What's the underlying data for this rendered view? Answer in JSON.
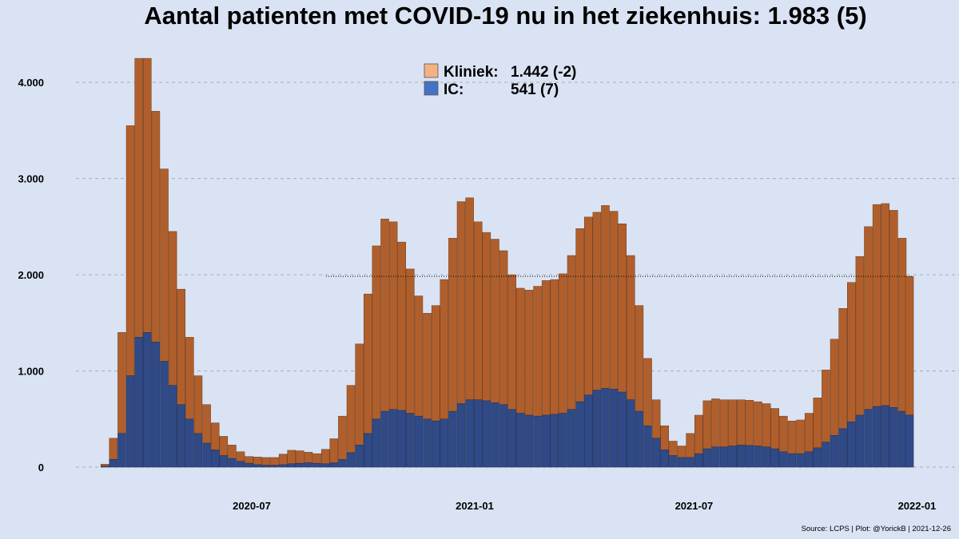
{
  "chart_data": {
    "type": "bar",
    "title": "Aantal patienten met COVID-19 nu in het ziekenhuis: 1.983  (5)",
    "xlabel": "",
    "ylabel": "",
    "ylim": [
      0,
      4400
    ],
    "y_ticks": [
      0,
      1000,
      2000,
      3000,
      4000
    ],
    "y_tick_labels": [
      "0",
      "1.000",
      "2.000",
      "3.000",
      "4.000"
    ],
    "x_tick_labels": [
      "2020-07",
      "2021-01",
      "2021-07",
      "2022-01"
    ],
    "x_ticks": [
      "2020-07-01",
      "2021-01-01",
      "2021-07-01",
      "2022-01-01"
    ],
    "stacked": true,
    "grid": "horizontal dashed",
    "reference_line": 1983,
    "legend_position": "top-center",
    "legend": [
      {
        "label": "Kliniek:",
        "value": "1.442  (-2)",
        "color": "#f4b183"
      },
      {
        "label": "IC:",
        "value": "541  (7)",
        "color": "#4472c4"
      }
    ],
    "x": [
      "2020-03-02",
      "2020-03-09",
      "2020-03-16",
      "2020-03-23",
      "2020-03-30",
      "2020-04-06",
      "2020-04-13",
      "2020-04-20",
      "2020-04-27",
      "2020-05-04",
      "2020-05-11",
      "2020-05-18",
      "2020-05-25",
      "2020-06-01",
      "2020-06-08",
      "2020-06-15",
      "2020-06-22",
      "2020-06-29",
      "2020-07-06",
      "2020-07-13",
      "2020-07-20",
      "2020-07-27",
      "2020-08-03",
      "2020-08-10",
      "2020-08-17",
      "2020-08-24",
      "2020-08-31",
      "2020-09-07",
      "2020-09-14",
      "2020-09-21",
      "2020-09-28",
      "2020-10-05",
      "2020-10-12",
      "2020-10-19",
      "2020-10-26",
      "2020-11-02",
      "2020-11-09",
      "2020-11-16",
      "2020-11-23",
      "2020-11-30",
      "2020-12-07",
      "2020-12-14",
      "2020-12-21",
      "2020-12-28",
      "2021-01-04",
      "2021-01-11",
      "2021-01-18",
      "2021-01-25",
      "2021-02-01",
      "2021-02-08",
      "2021-02-15",
      "2021-02-22",
      "2021-03-01",
      "2021-03-08",
      "2021-03-15",
      "2021-03-22",
      "2021-03-29",
      "2021-04-05",
      "2021-04-12",
      "2021-04-19",
      "2021-04-26",
      "2021-05-03",
      "2021-05-10",
      "2021-05-17",
      "2021-05-24",
      "2021-05-31",
      "2021-06-07",
      "2021-06-14",
      "2021-06-21",
      "2021-06-28",
      "2021-07-05",
      "2021-07-12",
      "2021-07-19",
      "2021-07-26",
      "2021-08-02",
      "2021-08-09",
      "2021-08-16",
      "2021-08-23",
      "2021-08-30",
      "2021-09-06",
      "2021-09-13",
      "2021-09-20",
      "2021-09-27",
      "2021-10-04",
      "2021-10-11",
      "2021-10-18",
      "2021-10-25",
      "2021-11-01",
      "2021-11-08",
      "2021-11-15",
      "2021-11-22",
      "2021-11-29",
      "2021-12-06",
      "2021-12-13",
      "2021-12-20",
      "2021-12-26"
    ],
    "series": [
      {
        "name": "IC",
        "color": "#4472c4",
        "values": [
          10,
          80,
          350,
          950,
          1350,
          1400,
          1300,
          1100,
          850,
          650,
          500,
          350,
          250,
          180,
          120,
          90,
          60,
          40,
          25,
          20,
          20,
          25,
          35,
          40,
          45,
          40,
          35,
          45,
          80,
          150,
          230,
          350,
          500,
          580,
          600,
          590,
          560,
          530,
          500,
          480,
          500,
          580,
          660,
          700,
          700,
          690,
          670,
          650,
          600,
          560,
          540,
          530,
          540,
          550,
          560,
          600,
          680,
          750,
          800,
          820,
          810,
          780,
          700,
          580,
          430,
          300,
          180,
          120,
          100,
          100,
          140,
          190,
          210,
          210,
          220,
          230,
          225,
          220,
          210,
          190,
          160,
          140,
          140,
          160,
          200,
          260,
          330,
          400,
          470,
          540,
          600,
          630,
          640,
          620,
          580,
          541
        ]
      },
      {
        "name": "Kliniek",
        "color": "#f4b183",
        "values": [
          20,
          220,
          1050,
          2600,
          2900,
          2850,
          2400,
          2000,
          1600,
          1200,
          850,
          600,
          400,
          280,
          200,
          140,
          100,
          70,
          80,
          80,
          80,
          110,
          140,
          130,
          110,
          100,
          150,
          250,
          450,
          700,
          1050,
          1450,
          1800,
          2000,
          1950,
          1750,
          1500,
          1250,
          1100,
          1200,
          1450,
          1800,
          2100,
          2100,
          1850,
          1750,
          1700,
          1600,
          1400,
          1300,
          1300,
          1350,
          1400,
          1400,
          1450,
          1600,
          1800,
          1850,
          1850,
          1900,
          1850,
          1750,
          1500,
          1100,
          700,
          400,
          250,
          150,
          120,
          250,
          400,
          500,
          500,
          490,
          480,
          470,
          470,
          460,
          450,
          420,
          370,
          340,
          350,
          400,
          520,
          750,
          1000,
          1250,
          1450,
          1650,
          1900,
          2100,
          2100,
          2050,
          1800,
          1442
        ]
      }
    ]
  },
  "source_note": "Source: LCPS | Plot: @YorickB |  2021-12-26"
}
